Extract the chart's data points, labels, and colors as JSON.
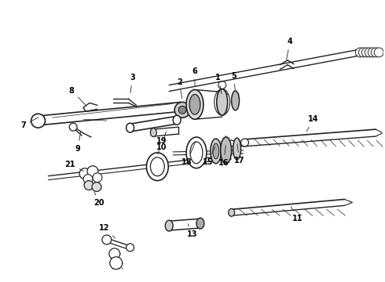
{
  "bg_color": "#ffffff",
  "line_color": "#222222",
  "text_color": "#000000",
  "lw": 0.9,
  "fs": 7.0
}
